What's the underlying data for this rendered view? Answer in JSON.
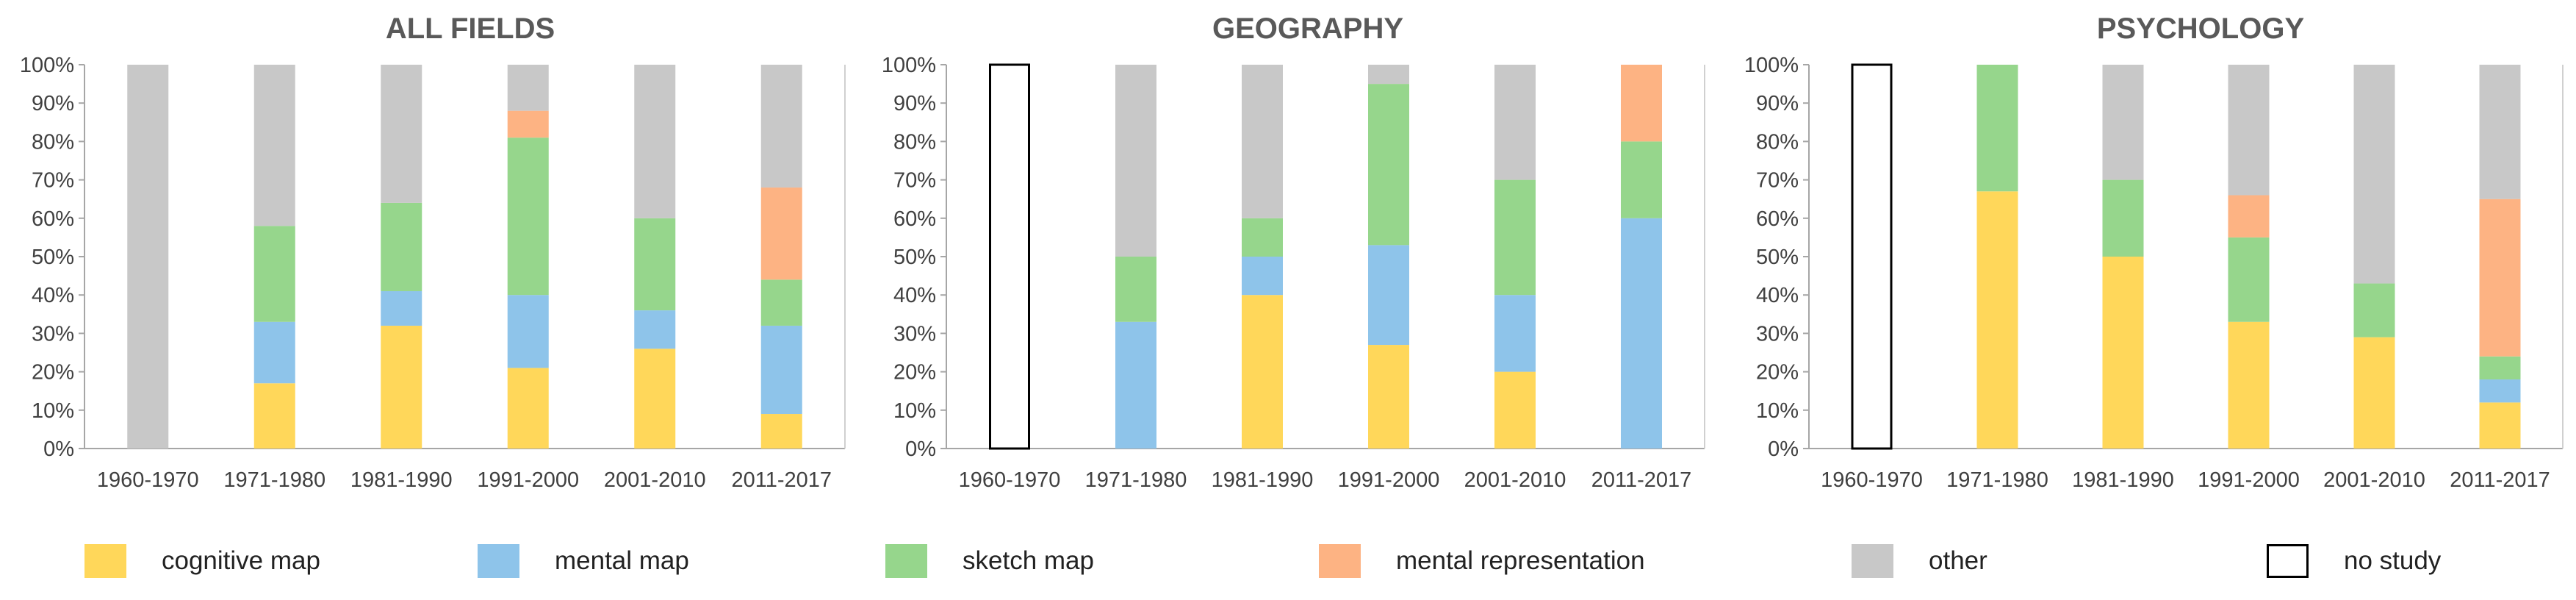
{
  "legend": [
    {
      "key": "cognitive",
      "label": "cognitive map",
      "color": "#FFD75A"
    },
    {
      "key": "mental",
      "label": "mental map",
      "color": "#8EC4EA"
    },
    {
      "key": "sketch",
      "label": "sketch map",
      "color": "#96D68C"
    },
    {
      "key": "representation",
      "label": "mental representation",
      "color": "#FDB383"
    },
    {
      "key": "other",
      "label": "other",
      "color": "#C8C8C8"
    },
    {
      "key": "nostudy",
      "label": "no study",
      "color": "#FFFFFF",
      "stroke": "#000000"
    }
  ],
  "chart_data": [
    {
      "type": "bar",
      "stacked": true,
      "title": "ALL FIELDS",
      "xlabel": "",
      "ylabel": "",
      "ylim": [
        0,
        100
      ],
      "yticks": [
        "0%",
        "10%",
        "20%",
        "30%",
        "40%",
        "50%",
        "60%",
        "70%",
        "80%",
        "90%",
        "100%"
      ],
      "categories": [
        "1960-1970",
        "1971-1980",
        "1981-1990",
        "1991-2000",
        "2001-2010",
        "2011-2017"
      ],
      "series": [
        {
          "name": "cognitive map",
          "key": "cognitive",
          "values": [
            0,
            17,
            32,
            21,
            26,
            9
          ]
        },
        {
          "name": "mental map",
          "key": "mental",
          "values": [
            0,
            16,
            9,
            19,
            10,
            23
          ]
        },
        {
          "name": "sketch map",
          "key": "sketch",
          "values": [
            0,
            25,
            23,
            41,
            24,
            12
          ]
        },
        {
          "name": "mental representation",
          "key": "representation",
          "values": [
            0,
            0,
            0,
            7,
            0,
            24
          ]
        },
        {
          "name": "other",
          "key": "other",
          "values": [
            100,
            42,
            36,
            12,
            40,
            32
          ]
        },
        {
          "name": "no study",
          "key": "nostudy",
          "values": [
            0,
            0,
            0,
            0,
            0,
            0
          ]
        }
      ]
    },
    {
      "type": "bar",
      "stacked": true,
      "title": "GEOGRAPHY",
      "xlabel": "",
      "ylabel": "",
      "ylim": [
        0,
        100
      ],
      "yticks": [
        "0%",
        "10%",
        "20%",
        "30%",
        "40%",
        "50%",
        "60%",
        "70%",
        "80%",
        "90%",
        "100%"
      ],
      "categories": [
        "1960-1970",
        "1971-1980",
        "1981-1990",
        "1991-2000",
        "2001-2010",
        "2011-2017"
      ],
      "series": [
        {
          "name": "cognitive map",
          "key": "cognitive",
          "values": [
            0,
            0,
            40,
            27,
            20,
            0
          ]
        },
        {
          "name": "mental map",
          "key": "mental",
          "values": [
            0,
            33,
            10,
            26,
            20,
            60
          ]
        },
        {
          "name": "sketch map",
          "key": "sketch",
          "values": [
            0,
            17,
            10,
            42,
            30,
            20
          ]
        },
        {
          "name": "mental representation",
          "key": "representation",
          "values": [
            0,
            0,
            0,
            0,
            0,
            20
          ]
        },
        {
          "name": "other",
          "key": "other",
          "values": [
            0,
            50,
            40,
            5,
            30,
            0
          ]
        },
        {
          "name": "no study",
          "key": "nostudy",
          "values": [
            100,
            0,
            0,
            0,
            0,
            0
          ]
        }
      ]
    },
    {
      "type": "bar",
      "stacked": true,
      "title": "PSYCHOLOGY",
      "xlabel": "",
      "ylabel": "",
      "ylim": [
        0,
        100
      ],
      "yticks": [
        "0%",
        "10%",
        "20%",
        "30%",
        "40%",
        "50%",
        "60%",
        "70%",
        "80%",
        "90%",
        "100%"
      ],
      "categories": [
        "1960-1970",
        "1971-1980",
        "1981-1990",
        "1991-2000",
        "2001-2010",
        "2011-2017"
      ],
      "series": [
        {
          "name": "cognitive map",
          "key": "cognitive",
          "values": [
            0,
            67,
            50,
            33,
            29,
            12
          ]
        },
        {
          "name": "mental map",
          "key": "mental",
          "values": [
            0,
            0,
            0,
            0,
            0,
            6
          ]
        },
        {
          "name": "sketch map",
          "key": "sketch",
          "values": [
            0,
            33,
            20,
            22,
            14,
            6
          ]
        },
        {
          "name": "mental representation",
          "key": "representation",
          "values": [
            0,
            0,
            0,
            11,
            0,
            41
          ]
        },
        {
          "name": "other",
          "key": "other",
          "values": [
            0,
            0,
            30,
            34,
            57,
            35
          ]
        },
        {
          "name": "no study",
          "key": "nostudy",
          "values": [
            100,
            0,
            0,
            0,
            0,
            0
          ]
        }
      ]
    }
  ]
}
